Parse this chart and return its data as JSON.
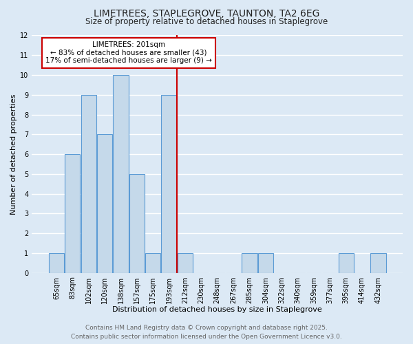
{
  "title": "LIMETREES, STAPLEGROVE, TAUNTON, TA2 6EG",
  "subtitle": "Size of property relative to detached houses in Staplegrove",
  "xlabel": "Distribution of detached houses by size in Staplegrove",
  "ylabel": "Number of detached properties",
  "bar_labels": [
    "65sqm",
    "83sqm",
    "102sqm",
    "120sqm",
    "138sqm",
    "157sqm",
    "175sqm",
    "193sqm",
    "212sqm",
    "230sqm",
    "248sqm",
    "267sqm",
    "285sqm",
    "304sqm",
    "322sqm",
    "340sqm",
    "359sqm",
    "377sqm",
    "395sqm",
    "414sqm",
    "432sqm"
  ],
  "bar_values": [
    1,
    6,
    9,
    7,
    10,
    5,
    1,
    9,
    1,
    0,
    0,
    0,
    1,
    1,
    0,
    0,
    0,
    0,
    1,
    0,
    1
  ],
  "bar_color": "#c5d9ea",
  "bar_edge_color": "#5b9bd5",
  "bg_color": "#dce9f5",
  "grid_color": "#ffffff",
  "vline_x": 8.0,
  "vline_color": "#cc0000",
  "annotation_title": "LIMETREES: 201sqm",
  "annotation_line1": "← 83% of detached houses are smaller (43)",
  "annotation_line2": "17% of semi-detached houses are larger (9) →",
  "annotation_box_color": "#ffffff",
  "annotation_border_color": "#cc0000",
  "ylim": [
    0,
    12
  ],
  "yticks": [
    0,
    1,
    2,
    3,
    4,
    5,
    6,
    7,
    8,
    9,
    10,
    11,
    12
  ],
  "footer_line1": "Contains HM Land Registry data © Crown copyright and database right 2025.",
  "footer_line2": "Contains public sector information licensed under the Open Government Licence v3.0.",
  "title_fontsize": 10,
  "subtitle_fontsize": 8.5,
  "xlabel_fontsize": 8,
  "ylabel_fontsize": 8,
  "tick_fontsize": 7,
  "annot_fontsize": 7.5,
  "footer_fontsize": 6.5
}
